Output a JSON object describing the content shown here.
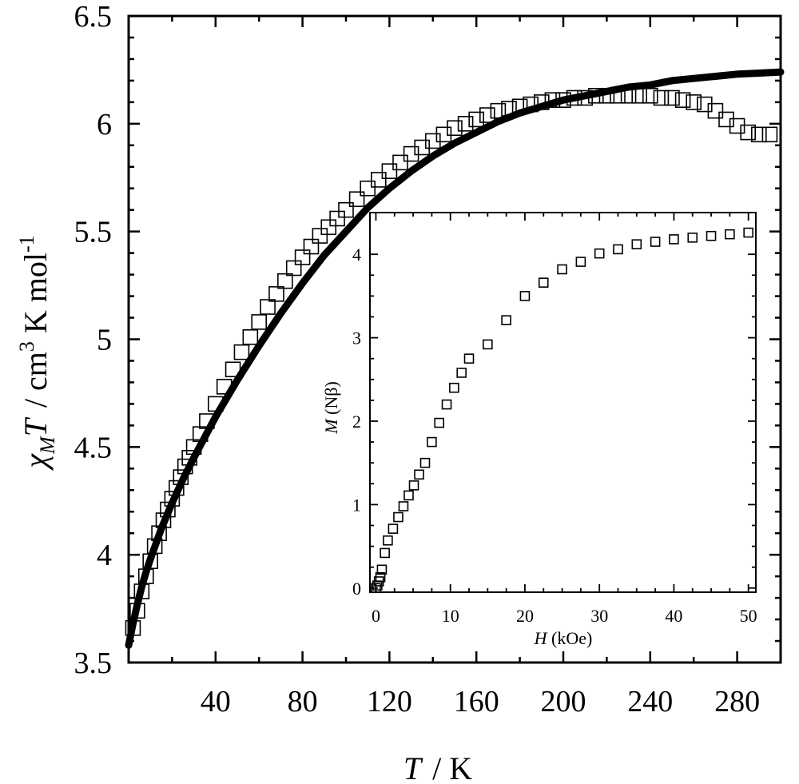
{
  "chart_data": [
    {
      "type": "scatter",
      "name": "main",
      "xlabel": "T  / K",
      "xlabel_symbol": "T",
      "xlabel_unit": "/ K",
      "ylabel_symbol": "χ",
      "ylabel_sub": "M",
      "ylabel_T": "T",
      "ylabel_unit": "/ cm",
      "ylabel_sup3": "3",
      "ylabel_unit2": " K mol",
      "ylabel_sup": "-1",
      "xlim": [
        0,
        300
      ],
      "ylim": [
        3.5,
        6.5
      ],
      "xticks": [
        40,
        80,
        120,
        160,
        200,
        240,
        280
      ],
      "xtick_labels": [
        "40",
        "80",
        "120",
        "160",
        "200",
        "240",
        "280"
      ],
      "yticks": [
        3.5,
        4,
        4.5,
        5,
        5.5,
        6,
        6.5
      ],
      "ytick_labels": [
        "3.5",
        "4",
        "4.5",
        "5",
        "5.5",
        "6",
        "6.5"
      ],
      "series": [
        {
          "name": "experimental",
          "marker": "open-square",
          "x": [
            2,
            4,
            6,
            8,
            10,
            12,
            14,
            16,
            18,
            20,
            22,
            24,
            26,
            28,
            30,
            33,
            36,
            40,
            44,
            48,
            52,
            56,
            60,
            64,
            68,
            72,
            76,
            80,
            84,
            88,
            92,
            96,
            100,
            105,
            110,
            115,
            120,
            125,
            130,
            135,
            140,
            145,
            150,
            155,
            160,
            165,
            170,
            175,
            180,
            185,
            190,
            195,
            200,
            205,
            210,
            215,
            220,
            225,
            230,
            235,
            240,
            245,
            250,
            255,
            260,
            265,
            270,
            275,
            280,
            285,
            290,
            295
          ],
          "y": [
            3.66,
            3.74,
            3.83,
            3.9,
            3.97,
            4.04,
            4.1,
            4.16,
            4.21,
            4.26,
            4.31,
            4.36,
            4.41,
            4.45,
            4.5,
            4.56,
            4.62,
            4.7,
            4.78,
            4.86,
            4.94,
            5.01,
            5.08,
            5.15,
            5.21,
            5.27,
            5.33,
            5.38,
            5.43,
            5.48,
            5.52,
            5.56,
            5.6,
            5.65,
            5.7,
            5.74,
            5.78,
            5.82,
            5.86,
            5.89,
            5.92,
            5.95,
            5.98,
            6.0,
            6.02,
            6.04,
            6.06,
            6.07,
            6.08,
            6.09,
            6.1,
            6.11,
            6.11,
            6.12,
            6.12,
            6.13,
            6.13,
            6.13,
            6.13,
            6.13,
            6.13,
            6.12,
            6.12,
            6.11,
            6.1,
            6.09,
            6.06,
            6.02,
            5.99,
            5.96,
            5.95,
            5.95
          ]
        },
        {
          "name": "fit",
          "style": "thick-line",
          "x": [
            0,
            2,
            4,
            6,
            8,
            10,
            15,
            20,
            25,
            30,
            40,
            50,
            60,
            70,
            80,
            90,
            100,
            110,
            120,
            130,
            140,
            150,
            160,
            170,
            180,
            190,
            200,
            210,
            220,
            230,
            240,
            250,
            260,
            270,
            280,
            290,
            300
          ],
          "y": [
            3.58,
            3.68,
            3.77,
            3.85,
            3.92,
            3.98,
            4.12,
            4.24,
            4.35,
            4.45,
            4.64,
            4.81,
            4.97,
            5.12,
            5.26,
            5.39,
            5.5,
            5.61,
            5.7,
            5.78,
            5.85,
            5.91,
            5.96,
            6.01,
            6.05,
            6.08,
            6.11,
            6.13,
            6.15,
            6.17,
            6.18,
            6.2,
            6.21,
            6.22,
            6.23,
            6.235,
            6.24
          ]
        }
      ]
    },
    {
      "type": "scatter",
      "name": "inset",
      "xlabel_symbol": "H",
      "xlabel_unit": " (kOe)",
      "ylabel_symbol": "M",
      "ylabel_unit": " (Nβ)",
      "xlim": [
        -0.8,
        51
      ],
      "ylim": [
        -0.05,
        4.5
      ],
      "xticks": [
        0,
        10,
        20,
        30,
        40,
        50
      ],
      "xtick_labels": [
        "0",
        "10",
        "20",
        "30",
        "40",
        "50"
      ],
      "yticks": [
        0,
        1,
        2,
        3,
        4
      ],
      "ytick_labels": [
        "0",
        "1",
        "2",
        "3",
        "4"
      ],
      "series": [
        {
          "name": "magnetization",
          "marker": "open-square",
          "x": [
            0,
            0.2,
            0.4,
            0.6,
            0.8,
            1.2,
            1.6,
            2.3,
            3.0,
            3.7,
            4.4,
            5.1,
            5.8,
            6.6,
            7.5,
            8.5,
            9.5,
            10.5,
            11.5,
            12.5,
            15,
            17.5,
            20,
            22.5,
            25,
            27.5,
            30,
            32.5,
            35,
            37.5,
            40,
            42.5,
            45,
            47.5,
            50
          ],
          "y": [
            0.0,
            0.03,
            0.08,
            0.13,
            0.22,
            0.42,
            0.57,
            0.71,
            0.85,
            0.98,
            1.11,
            1.23,
            1.36,
            1.5,
            1.75,
            1.98,
            2.2,
            2.4,
            2.58,
            2.75,
            2.92,
            3.21,
            3.5,
            3.66,
            3.82,
            3.91,
            4.01,
            4.06,
            4.12,
            4.15,
            4.18,
            4.2,
            4.22,
            4.24,
            4.26
          ]
        }
      ]
    }
  ]
}
